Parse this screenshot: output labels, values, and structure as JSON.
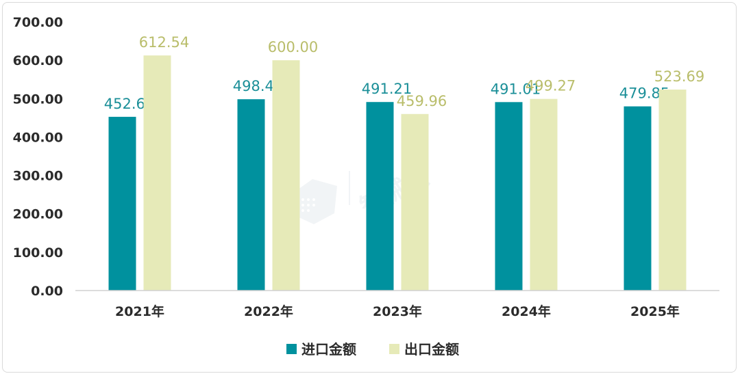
{
  "chart_data": {
    "type": "bar",
    "categories": [
      "2021年",
      "2022年",
      "2023年",
      "2024年",
      "2025年"
    ],
    "series": [
      {
        "name": "进口金额",
        "values": [
          452.64,
          498.44,
          491.21,
          491.01,
          479.85
        ],
        "labels": [
          "452.64",
          "498.44",
          "491.21",
          "491.01",
          "479.85"
        ],
        "color": "#00919e",
        "label_color": "#1b8f98"
      },
      {
        "name": "出口金额",
        "values": [
          612.54,
          600.0,
          459.96,
          499.27,
          523.69
        ],
        "labels": [
          "612.54",
          "600.00",
          "459.96",
          "499.27",
          "523.69"
        ],
        "color": "#e6eab8",
        "label_color": "#b9bd6a"
      }
    ],
    "ylim": [
      0,
      700
    ],
    "yticks": [
      "0.00",
      "100.00",
      "200.00",
      "300.00",
      "400.00",
      "500.00",
      "600.00",
      "700.00"
    ],
    "grid": false,
    "legend_position": "bottom-center"
  },
  "watermark": {
    "text": "智械云"
  }
}
